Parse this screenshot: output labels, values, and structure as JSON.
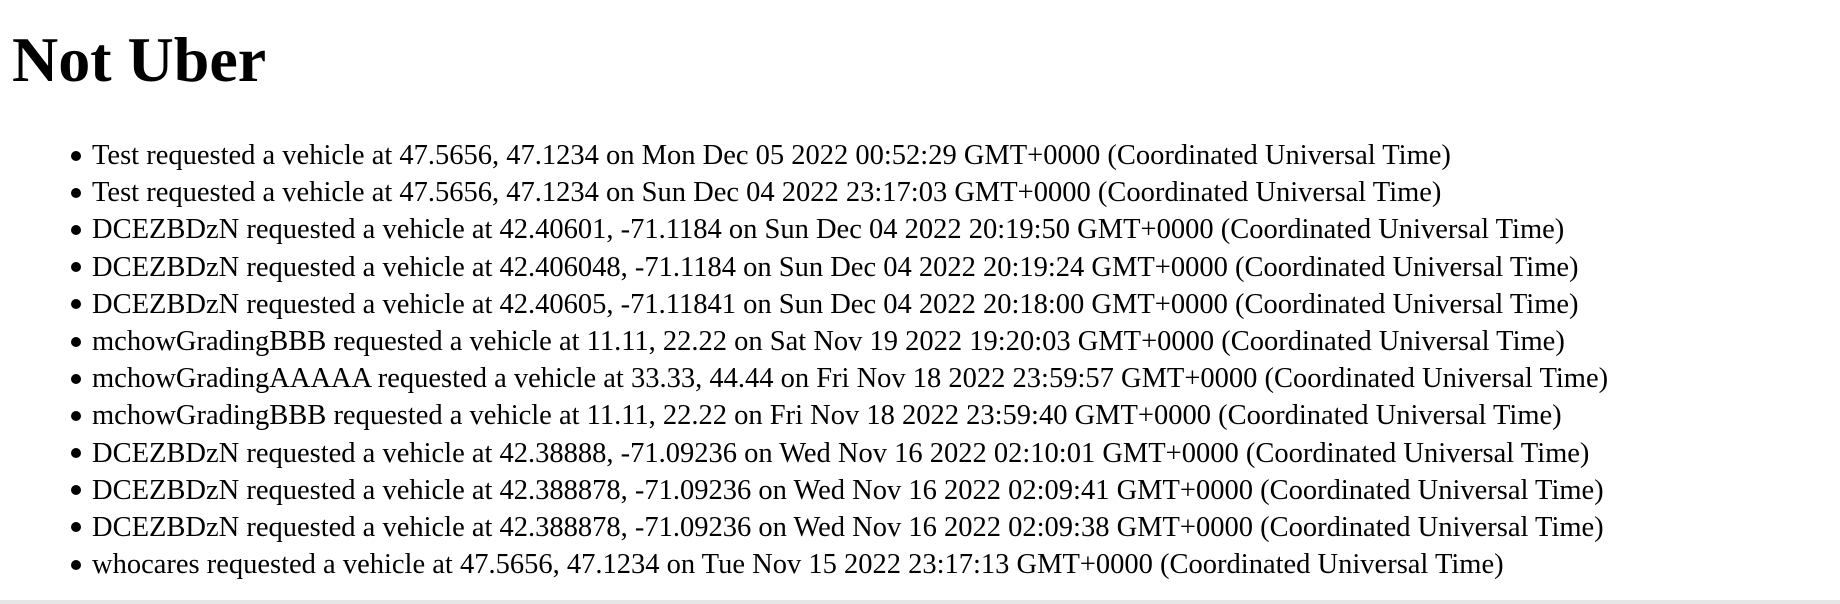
{
  "page": {
    "title": "Not Uber"
  },
  "requests": [
    "Test requested a vehicle at 47.5656, 47.1234 on Mon Dec 05 2022 00:52:29 GMT+0000 (Coordinated Universal Time)",
    "Test requested a vehicle at 47.5656, 47.1234 on Sun Dec 04 2022 23:17:03 GMT+0000 (Coordinated Universal Time)",
    "DCEZBDzN requested a vehicle at 42.40601, -71.1184 on Sun Dec 04 2022 20:19:50 GMT+0000 (Coordinated Universal Time)",
    "DCEZBDzN requested a vehicle at 42.406048, -71.1184 on Sun Dec 04 2022 20:19:24 GMT+0000 (Coordinated Universal Time)",
    "DCEZBDzN requested a vehicle at 42.40605, -71.11841 on Sun Dec 04 2022 20:18:00 GMT+0000 (Coordinated Universal Time)",
    "mchowGradingBBB requested a vehicle at 11.11, 22.22 on Sat Nov 19 2022 19:20:03 GMT+0000 (Coordinated Universal Time)",
    "mchowGradingAAAAA requested a vehicle at 33.33, 44.44 on Fri Nov 18 2022 23:59:57 GMT+0000 (Coordinated Universal Time)",
    "mchowGradingBBB requested a vehicle at 11.11, 22.22 on Fri Nov 18 2022 23:59:40 GMT+0000 (Coordinated Universal Time)",
    "DCEZBDzN requested a vehicle at 42.38888, -71.09236 on Wed Nov 16 2022 02:10:01 GMT+0000 (Coordinated Universal Time)",
    "DCEZBDzN requested a vehicle at 42.388878, -71.09236 on Wed Nov 16 2022 02:09:41 GMT+0000 (Coordinated Universal Time)",
    "DCEZBDzN requested a vehicle at 42.388878, -71.09236 on Wed Nov 16 2022 02:09:38 GMT+0000 (Coordinated Universal Time)",
    "whocares requested a vehicle at 47.5656, 47.1234 on Tue Nov 15 2022 23:17:13 GMT+0000 (Coordinated Universal Time)"
  ]
}
